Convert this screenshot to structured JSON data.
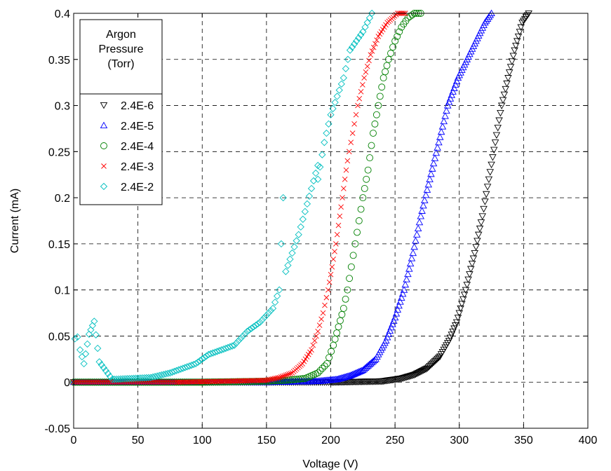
{
  "chart_data": {
    "type": "scatter",
    "xlabel": "Voltage (V)",
    "ylabel": "Current (mA)",
    "xlim": [
      0,
      400
    ],
    "ylim": [
      -0.05,
      0.4
    ],
    "xticks": [
      "0",
      "50",
      "100",
      "150",
      "200",
      "250",
      "300",
      "350",
      "400"
    ],
    "yticks": [
      "-0.05",
      "0",
      "0.05",
      "0.1",
      "0.15",
      "0.2",
      "0.25",
      "0.3",
      "0.35",
      "0.4"
    ],
    "grid": true,
    "legend": {
      "title_lines": [
        "Argon",
        "Pressure",
        "(Torr)"
      ],
      "placement": "top-left"
    },
    "series": [
      {
        "name": "2.4E-6",
        "marker": "triangle-down",
        "color": "#000000",
        "points": [
          [
            200,
            0
          ],
          [
            240,
            0.001
          ],
          [
            255,
            0.004
          ],
          [
            265,
            0.008
          ],
          [
            275,
            0.015
          ],
          [
            285,
            0.028
          ],
          [
            292,
            0.045
          ],
          [
            298,
            0.065
          ],
          [
            305,
            0.1
          ],
          [
            312,
            0.14
          ],
          [
            318,
            0.18
          ],
          [
            323,
            0.22
          ],
          [
            328,
            0.26
          ],
          [
            333,
            0.3
          ],
          [
            338,
            0.33
          ],
          [
            343,
            0.36
          ],
          [
            349,
            0.39
          ],
          [
            354,
            0.4
          ]
        ]
      },
      {
        "name": "2.4E-5",
        "marker": "triangle-up",
        "color": "#0000ff",
        "points": [
          [
            150,
            0
          ],
          [
            190,
            0.001
          ],
          [
            205,
            0.003
          ],
          [
            215,
            0.007
          ],
          [
            225,
            0.013
          ],
          [
            235,
            0.025
          ],
          [
            243,
            0.045
          ],
          [
            250,
            0.07
          ],
          [
            257,
            0.1
          ],
          [
            264,
            0.14
          ],
          [
            270,
            0.18
          ],
          [
            277,
            0.22
          ],
          [
            284,
            0.26
          ],
          [
            291,
            0.3
          ],
          [
            299,
            0.33
          ],
          [
            306,
            0.35
          ],
          [
            313,
            0.37
          ],
          [
            320,
            0.39
          ],
          [
            325,
            0.4
          ]
        ]
      },
      {
        "name": "2.4E-4",
        "marker": "circle",
        "color": "#008000",
        "points": [
          [
            100,
            0
          ],
          [
            150,
            0.001
          ],
          [
            165,
            0.002
          ],
          [
            180,
            0.004
          ],
          [
            190,
            0.01
          ],
          [
            197,
            0.02
          ],
          [
            202,
            0.04
          ],
          [
            206,
            0.06
          ],
          [
            210,
            0.08
          ],
          [
            213,
            0.1
          ],
          [
            216,
            0.125
          ],
          [
            219,
            0.15
          ],
          [
            222,
            0.175
          ],
          [
            225,
            0.2
          ],
          [
            229,
            0.23
          ],
          [
            233,
            0.27
          ],
          [
            237,
            0.3
          ],
          [
            241,
            0.33
          ],
          [
            245,
            0.35
          ],
          [
            250,
            0.37
          ],
          [
            255,
            0.385
          ],
          [
            260,
            0.395
          ],
          [
            265,
            0.4
          ],
          [
            270,
            0.4
          ]
        ]
      },
      {
        "name": "2.4E-3",
        "marker": "x",
        "color": "#ff0000",
        "points": [
          [
            80,
            0
          ],
          [
            120,
            0.001
          ],
          [
            150,
            0.002
          ],
          [
            160,
            0.005
          ],
          [
            170,
            0.01
          ],
          [
            178,
            0.02
          ],
          [
            185,
            0.035
          ],
          [
            190,
            0.055
          ],
          [
            194,
            0.075
          ],
          [
            198,
            0.1
          ],
          [
            201,
            0.125
          ],
          [
            204,
            0.15
          ],
          [
            207,
            0.18
          ],
          [
            210,
            0.21
          ],
          [
            213,
            0.24
          ],
          [
            217,
            0.27
          ],
          [
            221,
            0.3
          ],
          [
            226,
            0.33
          ],
          [
            231,
            0.355
          ],
          [
            237,
            0.375
          ],
          [
            244,
            0.39
          ],
          [
            252,
            0.4
          ],
          [
            258,
            0.4
          ]
        ]
      },
      {
        "name": "2.4E-2",
        "marker": "diamond",
        "color": "#00bfbf",
        "points": [
          [
            1,
            0.047
          ],
          [
            3,
            0.049
          ],
          [
            5,
            0.035
          ],
          [
            8,
            0.02
          ],
          [
            12,
            0.052
          ],
          [
            16,
            0.066
          ],
          [
            20,
            0.022
          ],
          [
            30,
            0.003
          ],
          [
            45,
            0.004
          ],
          [
            60,
            0.005
          ],
          [
            75,
            0.01
          ],
          [
            85,
            0.015
          ],
          [
            95,
            0.02
          ],
          [
            105,
            0.03
          ],
          [
            115,
            0.035
          ],
          [
            125,
            0.04
          ],
          [
            135,
            0.055
          ],
          [
            145,
            0.065
          ],
          [
            155,
            0.08
          ],
          [
            160,
            0.1
          ],
          [
            165,
            0.12
          ],
          [
            170,
            0.14
          ],
          [
            175,
            0.16
          ],
          [
            180,
            0.185
          ],
          [
            185,
            0.21
          ],
          [
            190,
            0.235
          ],
          [
            195,
            0.26
          ],
          [
            200,
            0.29
          ],
          [
            205,
            0.31
          ],
          [
            210,
            0.33
          ],
          [
            215,
            0.36
          ],
          [
            220,
            0.37
          ],
          [
            225,
            0.38
          ],
          [
            232,
            0.4
          ],
          [
            163,
            0.2
          ],
          [
            190,
            0.22
          ]
        ]
      }
    ]
  }
}
